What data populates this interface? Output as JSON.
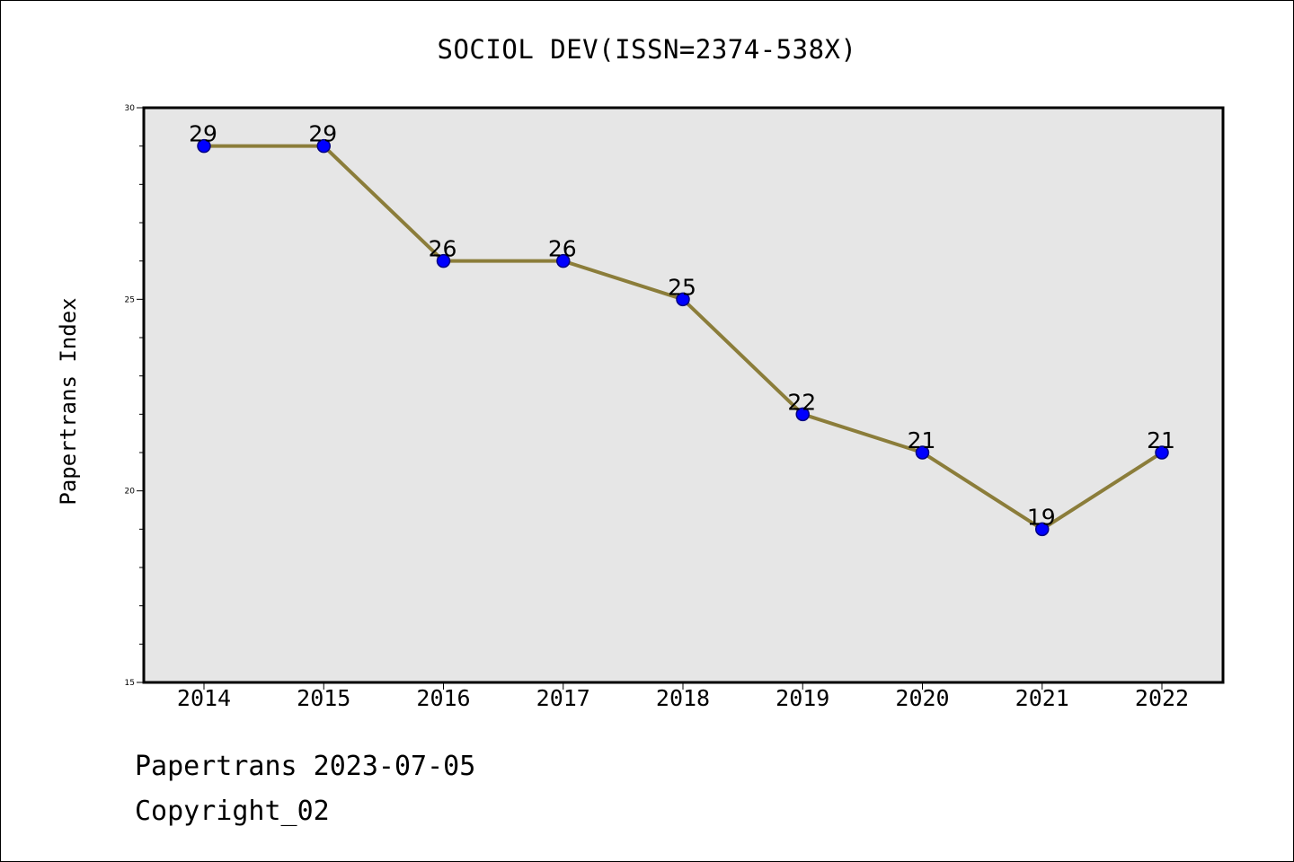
{
  "chart_data": {
    "type": "line",
    "title": "SOCIOL DEV(ISSN=2374-538X)",
    "xlabel": "",
    "ylabel": "Papertrans Index",
    "categories": [
      "2014",
      "2015",
      "2016",
      "2017",
      "2018",
      "2019",
      "2020",
      "2021",
      "2022"
    ],
    "series": [
      {
        "values": [
          29,
          29,
          26,
          26,
          25,
          22,
          21,
          19,
          21
        ]
      }
    ],
    "ylim": [
      15,
      30
    ],
    "yticks": [
      "15",
      "20",
      "25",
      "30"
    ],
    "data_labels": true,
    "grid": false,
    "colors": {
      "line": "#8B7D3A",
      "marker": "#0000FF",
      "marker_edge": "#000080",
      "plot_background": "#E6E6E6"
    }
  },
  "footer": {
    "line1": "Papertrans 2023-07-05",
    "line2": "Copyright_02"
  }
}
